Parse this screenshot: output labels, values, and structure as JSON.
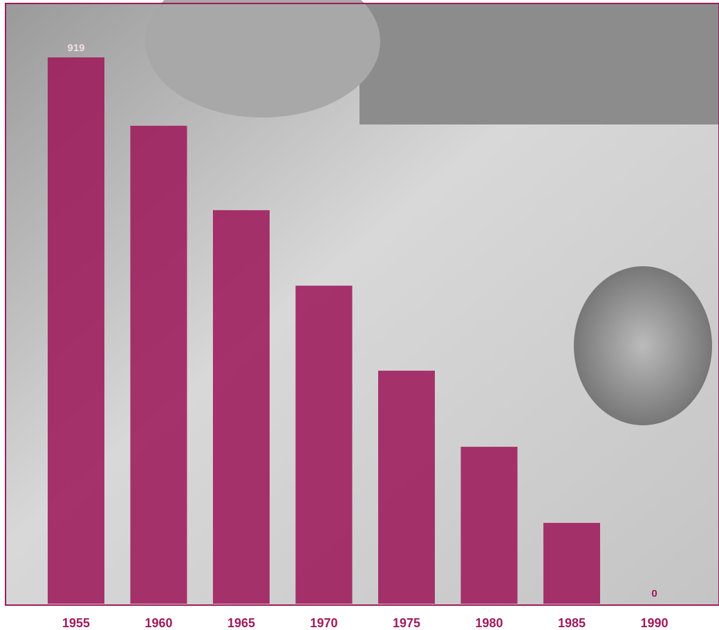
{
  "chart_data": {
    "type": "bar",
    "categories": [
      "1955",
      "1960",
      "1965",
      "1970",
      "1975",
      "1980",
      "1985",
      "1990"
    ],
    "values": [
      919,
      804,
      662,
      535,
      392,
      264,
      136,
      0
    ],
    "value_labels": [
      "919",
      null,
      null,
      null,
      null,
      null,
      null,
      "0"
    ],
    "color": "#9e1a5c"
  }
}
